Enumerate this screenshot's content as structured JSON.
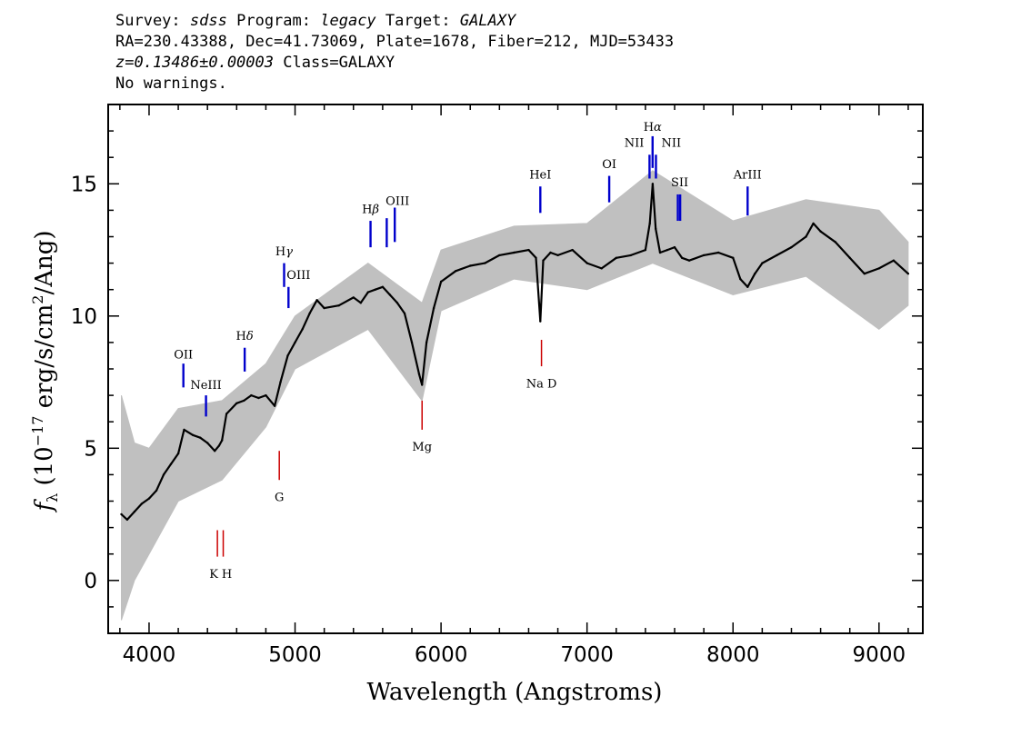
{
  "header": {
    "survey_label": "Survey:",
    "survey": "sdss",
    "program_label": "Program:",
    "program": "legacy",
    "target_label": "Target:",
    "target": "GALAXY",
    "line2": "RA=230.43388, Dec=41.73069, Plate=1678, Fiber=212, MJD=53433",
    "redshift": "z=0.13486±0.00003",
    "class_text": "Class=GALAXY",
    "warnings": "No warnings."
  },
  "colors": {
    "flux": "#000000",
    "error": "#c0c0c0",
    "emission": "#0000cc",
    "absorption": "#cc0000"
  },
  "chart_data": {
    "type": "line",
    "title": "",
    "xlabel": "Wavelength (Angstroms)",
    "ylabel": "f_λ (10^-17 erg/s/cm^2/Ang)",
    "ylabel_parts": {
      "f": "f",
      "lambda": "λ",
      "open": " (10",
      "exp": "−17",
      "mid": " erg/s/cm",
      "exp2": "2",
      "close": "/Ang)"
    },
    "xlim": [
      3720,
      9300
    ],
    "ylim": [
      -2,
      18
    ],
    "grid": false,
    "x_ticks": [
      4000,
      5000,
      6000,
      7000,
      8000,
      9000
    ],
    "x_tick_labels": [
      "4000",
      "5000",
      "6000",
      "7000",
      "8000",
      "9000"
    ],
    "y_ticks": [
      0,
      5,
      10,
      15
    ],
    "y_tick_labels": [
      "0",
      "5",
      "10",
      "15"
    ],
    "series": [
      {
        "kind": "flux",
        "x": [
          3810,
          3850,
          3900,
          3950,
          4000,
          4050,
          4100,
          4150,
          4200,
          4240,
          4300,
          4350,
          4400,
          4450,
          4480,
          4500,
          4530,
          4600,
          4650,
          4700,
          4750,
          4800,
          4860,
          4900,
          4950,
          5000,
          5050,
          5100,
          5150,
          5200,
          5300,
          5400,
          5450,
          5500,
          5550,
          5600,
          5650,
          5700,
          5750,
          5800,
          5850,
          5870,
          5900,
          5950,
          6000,
          6100,
          6200,
          6300,
          6400,
          6500,
          6600,
          6650,
          6680,
          6700,
          6750,
          6800,
          6900,
          7000,
          7100,
          7200,
          7300,
          7400,
          7430,
          7450,
          7470,
          7500,
          7550,
          7600,
          7650,
          7700,
          7800,
          7900,
          8000,
          8050,
          8100,
          8150,
          8200,
          8300,
          8400,
          8500,
          8550,
          8600,
          8700,
          8800,
          8900,
          9000,
          9100,
          9200
        ],
        "y": [
          2.5,
          2.3,
          2.6,
          2.9,
          3.1,
          3.4,
          4.0,
          4.4,
          4.8,
          5.7,
          5.5,
          5.4,
          5.2,
          4.9,
          5.1,
          5.3,
          6.3,
          6.7,
          6.8,
          7.0,
          6.9,
          7.0,
          6.6,
          7.5,
          8.5,
          9.0,
          9.5,
          10.1,
          10.6,
          10.3,
          10.4,
          10.7,
          10.5,
          10.9,
          11.0,
          11.1,
          10.8,
          10.5,
          10.1,
          9.0,
          7.8,
          7.4,
          9.0,
          10.3,
          11.3,
          11.7,
          11.9,
          12.0,
          12.3,
          12.4,
          12.5,
          12.2,
          9.8,
          12.1,
          12.4,
          12.3,
          12.5,
          12.0,
          11.8,
          12.2,
          12.3,
          12.5,
          13.5,
          15.0,
          13.3,
          12.4,
          12.5,
          12.6,
          12.2,
          12.1,
          12.3,
          12.4,
          12.2,
          11.4,
          11.1,
          11.6,
          12.0,
          12.3,
          12.6,
          13.0,
          13.5,
          13.2,
          12.8,
          12.2,
          11.6,
          11.8,
          12.1,
          11.6
        ]
      },
      {
        "kind": "error_band",
        "x": [
          3810,
          3900,
          4000,
          4200,
          4500,
          4800,
          5000,
          5500,
          5870,
          6000,
          6500,
          7000,
          7450,
          8000,
          8500,
          9000,
          9200
        ],
        "y_low": [
          -1.5,
          0.0,
          1.0,
          3.0,
          3.8,
          5.8,
          8.0,
          9.5,
          6.8,
          10.2,
          11.4,
          11.0,
          12.0,
          10.8,
          11.5,
          9.5,
          10.4
        ],
        "y_high": [
          7.0,
          5.2,
          5.0,
          6.5,
          6.8,
          8.2,
          10.0,
          12.0,
          10.5,
          12.5,
          13.4,
          13.5,
          15.5,
          13.6,
          14.4,
          14.0,
          12.8
        ]
      }
    ],
    "annotations": [
      {
        "label": "OII",
        "x": 4235,
        "type": "emission",
        "tick_y": [
          7.3,
          8.2
        ],
        "text_y": 8.4
      },
      {
        "label": "NeIII",
        "x": 4390,
        "type": "emission",
        "tick_y": [
          6.2,
          7.0
        ],
        "text_y": 7.25
      },
      {
        "label": "Hδ",
        "x": 4655,
        "type": "emission",
        "tick_y": [
          7.9,
          8.8
        ],
        "text_y": 9.1
      },
      {
        "label": "Hγ",
        "x": 4925,
        "type": "emission",
        "tick_y": [
          11.1,
          12.0
        ],
        "text_y": 12.3
      },
      {
        "label": "OIII",
        "x": 4955,
        "type": "emission",
        "tick_y": [
          10.3,
          11.1
        ],
        "text_y": 11.4
      },
      {
        "label": "Hβ",
        "x": 5517,
        "type": "emission",
        "tick_y": [
          12.6,
          13.6
        ],
        "text_y": 13.9
      },
      {
        "label": "OIII",
        "x": 5628,
        "type": "emission",
        "tick_y": [
          12.6,
          13.7
        ],
        "text_y": 14.2
      },
      {
        "label": "OIII",
        "x": 5683,
        "type": "emission",
        "tick_y": [
          12.8,
          14.1
        ],
        "text_y": 14.2
      },
      {
        "label": "HeI",
        "x": 6680,
        "type": "emission",
        "tick_y": [
          13.9,
          14.9
        ],
        "text_y": 15.2
      },
      {
        "label": "OI",
        "x": 7152,
        "type": "emission",
        "tick_y": [
          14.3,
          15.3
        ],
        "text_y": 15.6
      },
      {
        "label": "NII",
        "x": 7428,
        "type": "emission",
        "tick_y": [
          15.2,
          16.1
        ],
        "text_y": 16.4
      },
      {
        "label": "Hα",
        "x": 7449,
        "type": "emission",
        "tick_y": [
          15.6,
          16.8
        ],
        "text_y": 17.0
      },
      {
        "label": "NII",
        "x": 7472,
        "type": "emission",
        "tick_y": [
          15.2,
          16.1
        ],
        "text_y": 16.4
      },
      {
        "label": "SII",
        "x": 7622,
        "type": "emission",
        "tick_y": [
          13.6,
          14.6
        ],
        "text_y": 14.9
      },
      {
        "label": "SII",
        "x": 7638,
        "type": "emission",
        "tick_y": [
          13.6,
          14.6
        ],
        "text_y": 14.9
      },
      {
        "label": "ArIII",
        "x": 8100,
        "type": "emission",
        "tick_y": [
          13.8,
          14.9
        ],
        "text_y": 15.2
      },
      {
        "label": "Na D",
        "x": 6688,
        "type": "absorption",
        "tick_y": [
          8.1,
          9.1
        ],
        "text_y": 7.3
      },
      {
        "label": "Mg",
        "x": 5870,
        "type": "absorption",
        "tick_y": [
          5.7,
          6.8
        ],
        "text_y": 4.9
      },
      {
        "label": "G",
        "x": 4892,
        "type": "absorption",
        "tick_y": [
          3.8,
          4.9
        ],
        "text_y": 3.0
      },
      {
        "label": "K",
        "x": 4468,
        "type": "absorption",
        "tick_y": [
          0.9,
          1.9
        ],
        "text_y": 0.1
      },
      {
        "label": "H",
        "x": 4508,
        "type": "absorption",
        "tick_y": [
          0.9,
          1.9
        ],
        "text_y": 0.1
      }
    ]
  }
}
